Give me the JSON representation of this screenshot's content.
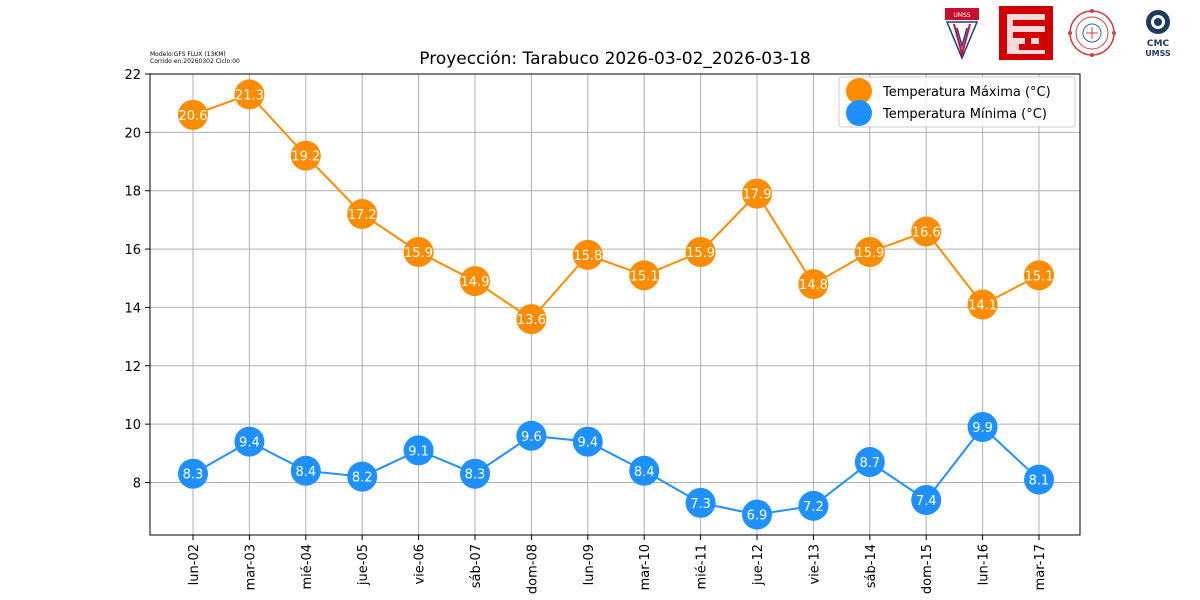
{
  "header": {
    "model_line1": "Modelo:GFS FLUX (13KM)",
    "model_line2": "Corrido en:20260302 Ciclo:00",
    "logos": [
      "umss-shield-logo",
      "red-maze-logo",
      "seal-logo",
      "cmc-umss-logo"
    ],
    "logo_text_cmc": "CMC",
    "logo_text_umss": "UMSS",
    "logo_text_shield": "UMSS"
  },
  "chart_data": {
    "type": "line",
    "title": "Proyección: Tarabuco 2026-03-02_2026-03-18",
    "xlabel": "",
    "ylabel": "",
    "categories": [
      "lun-02",
      "mar-03",
      "mié-04",
      "jue-05",
      "vie-06",
      "sáb-07",
      "dom-08",
      "lun-09",
      "mar-10",
      "mié-11",
      "jue-12",
      "vie-13",
      "sáb-14",
      "dom-15",
      "lun-16",
      "mar-17"
    ],
    "ylim": [
      6.2,
      22
    ],
    "yticks": [
      8,
      10,
      12,
      14,
      16,
      18,
      20,
      22
    ],
    "grid": true,
    "legend_position": "top-right",
    "series": [
      {
        "name": "Temperatura Máxima  (°C)",
        "color": "#ff8c00",
        "values": [
          20.6,
          21.3,
          19.2,
          17.2,
          15.9,
          14.9,
          13.6,
          15.8,
          15.1,
          15.9,
          17.9,
          14.8,
          15.9,
          16.6,
          14.1,
          15.1
        ]
      },
      {
        "name": "Temperatura Mínima  (°C)",
        "color": "#1e90ff",
        "values": [
          8.3,
          9.4,
          8.4,
          8.2,
          9.1,
          8.3,
          9.6,
          9.4,
          8.4,
          7.3,
          6.9,
          7.2,
          8.7,
          7.4,
          9.9,
          8.1
        ]
      }
    ]
  }
}
